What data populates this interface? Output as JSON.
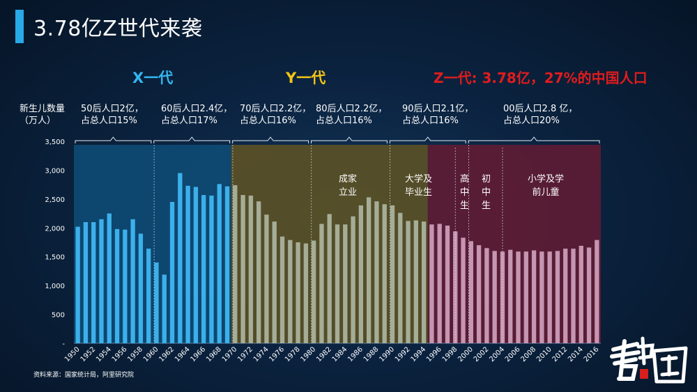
{
  "title": "3.78亿Z世代来袭",
  "generations": {
    "x": "X一代",
    "y": "Y一代",
    "z": "Z一代: 3.78亿，27%的中国人口"
  },
  "y_axis_label": [
    "新生儿数量",
    "（万人）"
  ],
  "decade_notes": [
    {
      "line1": "50后人口2亿，",
      "line2": "占总人口15%"
    },
    {
      "line1": "60后人口2.4亿，",
      "line2": "占总人口17%"
    },
    {
      "line1": "70后人口2.2亿，",
      "line2": "占总人口16%"
    },
    {
      "line1": "80后人口2.2亿，",
      "line2": "占总人口16%"
    },
    {
      "line1": "90后人口2.1亿，",
      "line2": "占总人口16%"
    },
    {
      "line1": "00后人口2.8 亿，",
      "line2": "占总人口20%"
    }
  ],
  "stages": {
    "career": [
      "成家",
      "立业"
    ],
    "college": [
      "大学及",
      "毕业生"
    ],
    "high": [
      "高",
      "中",
      "生"
    ],
    "middle": [
      "初",
      "中",
      "生"
    ],
    "primary": [
      "小学及学",
      "前儿童"
    ]
  },
  "source": "资料来源：国家统计局，阿里研究院",
  "colors": {
    "accent": "#29a9e6",
    "x_region": "#0e4a73",
    "y_region": "#5a5026",
    "z_region": "#5e1c34",
    "x_bar": "#3cb0ea",
    "y_bar": "#a5ad97",
    "z_bar": "#c595b1"
  },
  "chart_data": {
    "type": "bar",
    "ylim": [
      0,
      3500
    ],
    "yticks": [
      "-",
      "500",
      "1,000",
      "1,500",
      "2,000",
      "2,500",
      "3,000",
      "3,500"
    ],
    "x_tick_labels": [
      "1950",
      "1952",
      "1954",
      "1956",
      "1958",
      "1960",
      "1962",
      "1964",
      "1966",
      "1968",
      "1970",
      "1972",
      "1974",
      "1976",
      "1978",
      "1980",
      "1982",
      "1984",
      "1986",
      "1988",
      "1990",
      "1992",
      "1994",
      "1996",
      "1998",
      "2000",
      "2002",
      "2004",
      "2006",
      "2008",
      "2010",
      "2012",
      "2014",
      "2016"
    ],
    "x": [
      1950,
      1951,
      1952,
      1953,
      1954,
      1955,
      1956,
      1957,
      1958,
      1959,
      1960,
      1961,
      1962,
      1963,
      1964,
      1965,
      1966,
      1967,
      1968,
      1969,
      1970,
      1971,
      1972,
      1973,
      1974,
      1975,
      1976,
      1977,
      1978,
      1979,
      1980,
      1981,
      1982,
      1983,
      1984,
      1985,
      1986,
      1987,
      1988,
      1989,
      1990,
      1991,
      1992,
      1993,
      1994,
      1995,
      1996,
      1997,
      1998,
      1999,
      2000,
      2001,
      2002,
      2003,
      2004,
      2005,
      2006,
      2007,
      2008,
      2009,
      2010,
      2011,
      2012,
      2013,
      2014,
      2015,
      2016
    ],
    "values": [
      2020,
      2100,
      2100,
      2150,
      2250,
      1980,
      1970,
      2150,
      1900,
      1640,
      1400,
      1190,
      2450,
      2950,
      2730,
      2710,
      2570,
      2560,
      2760,
      2720,
      2740,
      2570,
      2560,
      2460,
      2230,
      2110,
      1850,
      1790,
      1750,
      1730,
      1780,
      2070,
      2240,
      2060,
      2060,
      2200,
      2390,
      2530,
      2460,
      2410,
      2390,
      2260,
      2120,
      2130,
      2110,
      2060,
      2070,
      2040,
      1940,
      1830,
      1770,
      1700,
      1650,
      1600,
      1590,
      1620,
      1590,
      1590,
      1610,
      1590,
      1590,
      1600,
      1640,
      1640,
      1690,
      1660,
      1790
    ],
    "generation_ranges": [
      {
        "generation": "x",
        "from": 1950,
        "to": 1969
      },
      {
        "generation": "y",
        "from": 1970,
        "to": 1994
      },
      {
        "generation": "z",
        "from": 1995,
        "to": 2016
      }
    ]
  }
}
